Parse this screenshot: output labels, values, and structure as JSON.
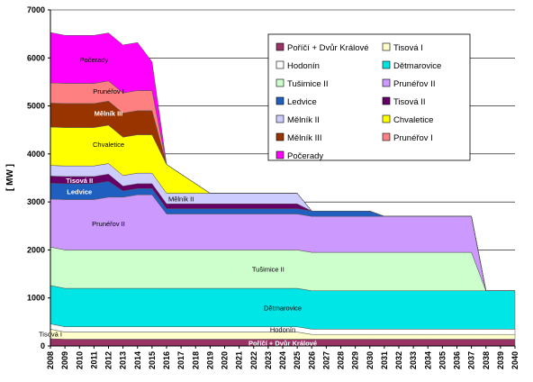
{
  "chart_data": {
    "type": "area",
    "stacked": true,
    "ylabel": "[ MW ]",
    "ylim": [
      0,
      7000
    ],
    "yticks": [
      0,
      1000,
      2000,
      3000,
      4000,
      5000,
      6000,
      7000
    ],
    "x": [
      "2008",
      "2009",
      "2010",
      "2011",
      "2012",
      "2013",
      "2014",
      "2015",
      "2016",
      "2017",
      "2018",
      "2019",
      "2020",
      "2021",
      "2022",
      "2023",
      "2024",
      "2025",
      "2026",
      "2027",
      "2028",
      "2029",
      "2030",
      "2031",
      "2032",
      "2033",
      "2034",
      "2035",
      "2036",
      "2037",
      "2038",
      "2039",
      "2040"
    ],
    "grid": true,
    "legend_position": "top-right",
    "series": [
      {
        "name": "Poříčí + Dvůr Králové",
        "color": "#993366",
        "label": "Poříčí + Dvůr Králové",
        "values": [
          150,
          140,
          140,
          140,
          140,
          140,
          140,
          140,
          140,
          140,
          140,
          140,
          140,
          140,
          140,
          140,
          140,
          140,
          140,
          140,
          140,
          140,
          140,
          140,
          140,
          140,
          140,
          140,
          140,
          140,
          140,
          140,
          140
        ]
      },
      {
        "name": "Tisová I",
        "color": "#FFFFCC",
        "label": "Tisová I",
        "values": [
          200,
          150,
          150,
          150,
          150,
          150,
          150,
          150,
          150,
          150,
          150,
          150,
          150,
          150,
          150,
          150,
          150,
          150,
          100,
          100,
          100,
          100,
          100,
          100,
          100,
          100,
          100,
          100,
          100,
          100,
          100,
          100,
          100
        ]
      },
      {
        "name": "Hodonín",
        "color": "#FFFFFF",
        "label": "Hodonín",
        "values": [
          110,
          110,
          110,
          110,
          110,
          110,
          110,
          110,
          110,
          110,
          110,
          110,
          110,
          110,
          110,
          110,
          110,
          110,
          110,
          110,
          110,
          110,
          110,
          110,
          110,
          110,
          110,
          110,
          110,
          110,
          110,
          110,
          110
        ]
      },
      {
        "name": "Dětmarovice",
        "color": "#00E5E5",
        "label": "Dětmarovice",
        "values": [
          800,
          800,
          800,
          800,
          800,
          800,
          800,
          800,
          800,
          800,
          800,
          800,
          800,
          800,
          800,
          800,
          800,
          800,
          800,
          800,
          800,
          800,
          800,
          800,
          800,
          800,
          800,
          800,
          800,
          800,
          800,
          800,
          800
        ]
      },
      {
        "name": "Tušimice II",
        "color": "#CCFFCC",
        "label": "Tušimice II",
        "values": [
          800,
          800,
          800,
          800,
          800,
          800,
          800,
          800,
          800,
          800,
          800,
          800,
          800,
          800,
          800,
          800,
          800,
          800,
          800,
          800,
          800,
          800,
          800,
          800,
          800,
          800,
          800,
          800,
          800,
          800,
          0,
          0,
          0
        ]
      },
      {
        "name": "Prunéřov II",
        "color": "#CC99FF",
        "label": "Prunéřov II",
        "values": [
          1000,
          1050,
          1050,
          1050,
          1100,
          1100,
          1150,
          1150,
          750,
          750,
          750,
          750,
          750,
          750,
          750,
          750,
          750,
          750,
          750,
          750,
          750,
          750,
          750,
          750,
          750,
          750,
          750,
          750,
          750,
          750,
          0,
          0,
          0
        ]
      },
      {
        "name": "Ledvice",
        "color": "#1F5FBF",
        "label": "Ledvice",
        "values": [
          330,
          330,
          330,
          330,
          330,
          130,
          130,
          130,
          110,
          110,
          110,
          110,
          110,
          110,
          110,
          110,
          110,
          110,
          110,
          110,
          110,
          110,
          110,
          0,
          0,
          0,
          0,
          0,
          0,
          0,
          0,
          0,
          0
        ]
      },
      {
        "name": "Tisová II",
        "color": "#660066",
        "label": "Tisová II",
        "values": [
          150,
          150,
          150,
          150,
          150,
          100,
          100,
          100,
          100,
          100,
          100,
          100,
          100,
          100,
          100,
          100,
          100,
          100,
          0,
          0,
          0,
          0,
          0,
          0,
          0,
          0,
          0,
          0,
          0,
          0,
          0,
          0,
          0
        ]
      },
      {
        "name": "Mělník II",
        "color": "#CCCCFF",
        "label": "Mělník II",
        "values": [
          220,
          220,
          220,
          220,
          220,
          220,
          220,
          220,
          220,
          220,
          220,
          220,
          220,
          220,
          220,
          220,
          220,
          220,
          0,
          0,
          0,
          0,
          0,
          0,
          0,
          0,
          0,
          0,
          0,
          0,
          0,
          0,
          0
        ]
      },
      {
        "name": "Chvaletice",
        "color": "#FFFF00",
        "label": "Chvaletice",
        "values": [
          800,
          800,
          800,
          800,
          800,
          800,
          800,
          800,
          600,
          400,
          200,
          0,
          0,
          0,
          0,
          0,
          0,
          0,
          0,
          0,
          0,
          0,
          0,
          0,
          0,
          0,
          0,
          0,
          0,
          0,
          0,
          0,
          0
        ]
      },
      {
        "name": "Mělník III",
        "color": "#993300",
        "label": "Mělník III",
        "values": [
          500,
          500,
          500,
          500,
          500,
          500,
          500,
          500,
          0,
          0,
          0,
          0,
          0,
          0,
          0,
          0,
          0,
          0,
          0,
          0,
          0,
          0,
          0,
          0,
          0,
          0,
          0,
          0,
          0,
          0,
          0,
          0,
          0
        ]
      },
      {
        "name": "Prunéřov I",
        "color": "#FF8080",
        "label": "Prunéřov I",
        "values": [
          420,
          420,
          420,
          420,
          420,
          420,
          420,
          420,
          0,
          0,
          0,
          0,
          0,
          0,
          0,
          0,
          0,
          0,
          0,
          0,
          0,
          0,
          0,
          0,
          0,
          0,
          0,
          0,
          0,
          0,
          0,
          0,
          0
        ]
      },
      {
        "name": "Počerady",
        "color": "#FF00FF",
        "label": "Počerady",
        "values": [
          1050,
          1000,
          1000,
          1000,
          1000,
          1000,
          1000,
          600,
          0,
          0,
          0,
          0,
          0,
          0,
          0,
          0,
          0,
          0,
          0,
          0,
          0,
          0,
          0,
          0,
          0,
          0,
          0,
          0,
          0,
          0,
          0,
          0,
          0
        ]
      }
    ],
    "legend": [
      "Poříčí + Dvůr Králové",
      "Tisová I",
      "Hodonín",
      "Dětmarovice",
      "Tušimice II",
      "Prunéřov II",
      "Ledvice",
      "Tisová II",
      "Mělník II",
      "Chvaletice",
      "Mělník III",
      "Prunéřov I",
      "Počerady"
    ]
  }
}
